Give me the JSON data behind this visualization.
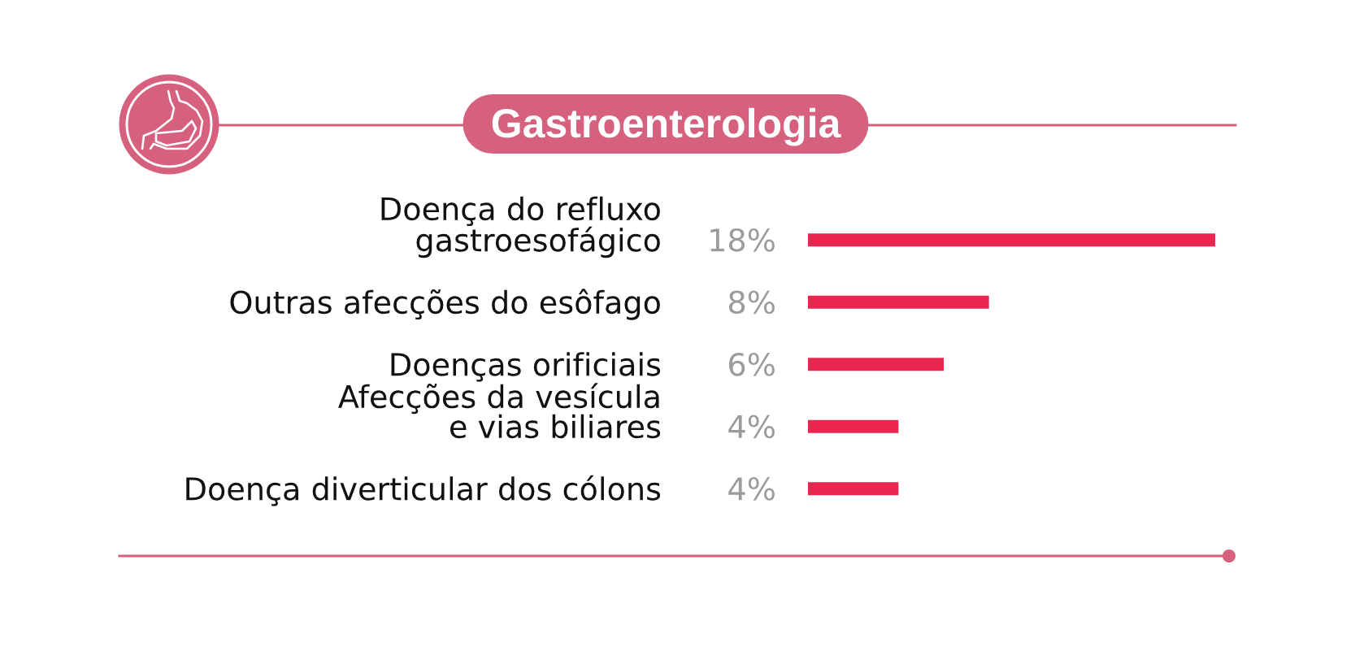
{
  "chart_data": {
    "type": "bar",
    "orientation": "horizontal",
    "title": "Gastroenterologia",
    "categories": [
      "Doença do refluxo\ngastroesofágico",
      "Outras afecções do esôfago",
      "Doenças orificiais",
      "Afecções da vesícula\ne vias biliares",
      "Doença diverticular dos cólons"
    ],
    "values": [
      18,
      8,
      6,
      4,
      4
    ],
    "value_labels": [
      "18%",
      "8%",
      "6%",
      "4%",
      "4%"
    ],
    "color": "#e8264f",
    "tick_labels": "y"
  }
}
